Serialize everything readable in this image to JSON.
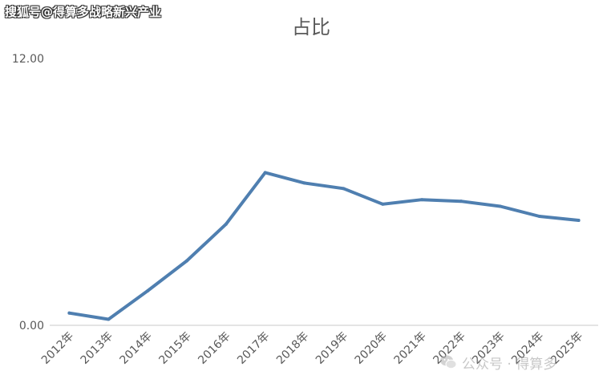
{
  "watermark_top": "搜狐号@得算多战略新兴产业",
  "watermark_bottom": "公众号 · 得算多",
  "colors": {
    "line": "#4f7fb0",
    "axis": "#d4d4d4",
    "text": "#595959",
    "title": "#595959"
  },
  "chart_data": {
    "type": "line",
    "title": "占比",
    "xlabel": "",
    "ylabel": "",
    "ylim": [
      0,
      12
    ],
    "ytick_labels": [
      "0.00",
      "12.00"
    ],
    "categories": [
      "2012年",
      "2013年",
      "2014年",
      "2015年",
      "2016年",
      "2017年",
      "2018年",
      "2019年",
      "2020年",
      "2021年",
      "2022年",
      "2023年",
      "2024年",
      "2025年"
    ],
    "series": [
      {
        "values": [
          0.55,
          0.27,
          1.55,
          2.9,
          4.55,
          6.87,
          6.4,
          6.15,
          5.45,
          5.65,
          5.58,
          5.35,
          4.9,
          4.72
        ]
      }
    ],
    "grid": false,
    "legend": "none"
  }
}
